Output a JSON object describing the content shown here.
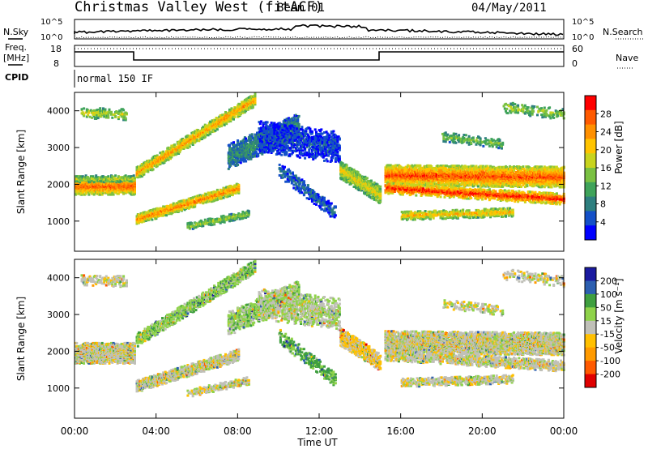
{
  "header": {
    "station": "Christmas Valley West (fitACF)",
    "beam": "Beam 01",
    "date": "04/May/2011"
  },
  "top_panels": {
    "nsky_label": "N.Sky",
    "nsearch_label": "N.Search",
    "freq_label_line1": "Freq.",
    "freq_label_line2": "[MHz]",
    "nave_label": "Nave",
    "cpid_label": "CPID",
    "noise_left_ticks": [
      "10^5",
      "10^0"
    ],
    "noise_right_ticks": [
      "10^5",
      "10^0"
    ],
    "freq_left_ticks": [
      "18",
      "8"
    ],
    "nave_right_ticks": [
      "60",
      "0"
    ],
    "cpid_text": "normal 150 IF"
  },
  "chart_data": [
    {
      "type": "heatmap",
      "title": "",
      "ylabel": "Slant Range [km]",
      "xlabel": "",
      "x_ticks": [
        "00:00",
        "04:00",
        "08:00",
        "12:00",
        "16:00",
        "20:00",
        "00:00"
      ],
      "y_ticks": [
        "1000",
        "2000",
        "3000",
        "4000"
      ],
      "xlim_hours": [
        0,
        24
      ],
      "ylim_km": [
        180,
        4500
      ],
      "colorbar": {
        "label": "Power [dB]",
        "ticks": [
          "4",
          "8",
          "12",
          "16",
          "20",
          "24",
          "28"
        ],
        "colors": [
          "#0000ff",
          "#1450c8",
          "#2e7f7f",
          "#3fa35a",
          "#7ac142",
          "#c8d41e",
          "#ffc400",
          "#ff9000",
          "#ff5a00",
          "#ff0000"
        ]
      },
      "bands": [
        {
          "t": [
            0.0,
            2.9
          ],
          "r": [
            1950,
            1950
          ],
          "w": 230,
          "level": 0.85,
          "d": 0.9
        },
        {
          "t": [
            0.0,
            2.9
          ],
          "r": [
            2150,
            2150
          ],
          "w": 90,
          "level": 0.55,
          "d": 0.6
        },
        {
          "t": [
            3.0,
            8.0
          ],
          "r": [
            1050,
            1900
          ],
          "w": 140,
          "level": 0.8,
          "d": 0.8
        },
        {
          "t": [
            3.0,
            8.8
          ],
          "r": [
            2300,
            4300
          ],
          "w": 170,
          "level": 0.75,
          "d": 0.75
        },
        {
          "t": [
            5.5,
            8.5
          ],
          "r": [
            850,
            1200
          ],
          "w": 90,
          "level": 0.5,
          "d": 0.55
        },
        {
          "t": [
            7.5,
            11.0
          ],
          "r": [
            2750,
            3600
          ],
          "w": 330,
          "level": 0.3,
          "d": 0.6
        },
        {
          "t": [
            9.0,
            13.0
          ],
          "r": [
            3300,
            3000
          ],
          "w": 420,
          "level": 0.15,
          "d": 0.45
        },
        {
          "t": [
            10.0,
            12.8
          ],
          "r": [
            2400,
            1200
          ],
          "w": 200,
          "level": 0.2,
          "d": 0.4
        },
        {
          "t": [
            13.0,
            15.0
          ],
          "r": [
            2400,
            1700
          ],
          "w": 240,
          "level": 0.62,
          "d": 0.85
        },
        {
          "t": [
            15.2,
            24.0
          ],
          "r": [
            2250,
            2200
          ],
          "w": 280,
          "level": 0.88,
          "d": 0.92
        },
        {
          "t": [
            15.2,
            24.0
          ],
          "r": [
            1900,
            1600
          ],
          "w": 150,
          "level": 0.95,
          "d": 0.6
        },
        {
          "t": [
            16.0,
            21.5
          ],
          "r": [
            1150,
            1250
          ],
          "w": 120,
          "level": 0.7,
          "d": 0.55
        },
        {
          "t": [
            0.3,
            2.5
          ],
          "r": [
            3950,
            3900
          ],
          "w": 150,
          "level": 0.55,
          "d": 0.3
        },
        {
          "t": [
            18.0,
            21.0
          ],
          "r": [
            3300,
            3100
          ],
          "w": 130,
          "level": 0.45,
          "d": 0.3
        },
        {
          "t": [
            21.0,
            24.0
          ],
          "r": [
            4100,
            3900
          ],
          "w": 150,
          "level": 0.5,
          "d": 0.25
        }
      ]
    },
    {
      "type": "heatmap",
      "title": "",
      "ylabel": "Slant Range [km]",
      "xlabel": "Time UT",
      "x_ticks": [
        "00:00",
        "04:00",
        "08:00",
        "12:00",
        "16:00",
        "20:00",
        "00:00"
      ],
      "y_ticks": [
        "1000",
        "2000",
        "3000",
        "4000"
      ],
      "xlim_hours": [
        0,
        24
      ],
      "ylim_km": [
        180,
        4500
      ],
      "colorbar": {
        "label": "Velocity [m s⁻¹]",
        "ticks": [
          "200",
          "100",
          "50",
          "15",
          "-15",
          "-50",
          "-100",
          "-200"
        ],
        "colors": [
          "#1a1aa0",
          "#2c5fb0",
          "#3f9f3f",
          "#8fd34a",
          "#c0c0b8",
          "#ffc000",
          "#ff9a00",
          "#ff5a00",
          "#e00000"
        ]
      },
      "bands": [
        {
          "t": [
            0.0,
            2.9
          ],
          "r": [
            1950,
            1950
          ],
          "w": 280,
          "level": 0.5,
          "d": 0.92
        },
        {
          "t": [
            3.0,
            8.0
          ],
          "r": [
            1050,
            1900
          ],
          "w": 160,
          "level": 0.5,
          "d": 0.85
        },
        {
          "t": [
            3.0,
            8.8
          ],
          "r": [
            2300,
            4300
          ],
          "w": 180,
          "level": 0.62,
          "d": 0.7
        },
        {
          "t": [
            5.5,
            8.5
          ],
          "r": [
            850,
            1200
          ],
          "w": 100,
          "level": 0.5,
          "d": 0.55
        },
        {
          "t": [
            7.5,
            11.0
          ],
          "r": [
            2750,
            3600
          ],
          "w": 320,
          "level": 0.6,
          "d": 0.5
        },
        {
          "t": [
            9.0,
            13.0
          ],
          "r": [
            3300,
            3000
          ],
          "w": 420,
          "level": 0.55,
          "d": 0.45
        },
        {
          "t": [
            10.0,
            12.8
          ],
          "r": [
            2400,
            1200
          ],
          "w": 200,
          "level": 0.7,
          "d": 0.35
        },
        {
          "t": [
            13.0,
            15.0
          ],
          "r": [
            2400,
            1700
          ],
          "w": 240,
          "level": 0.42,
          "d": 0.8
        },
        {
          "t": [
            15.2,
            24.0
          ],
          "r": [
            2250,
            2200
          ],
          "w": 300,
          "level": 0.5,
          "d": 0.9
        },
        {
          "t": [
            15.2,
            24.0
          ],
          "r": [
            1900,
            1600
          ],
          "w": 150,
          "level": 0.5,
          "d": 0.6
        },
        {
          "t": [
            16.0,
            21.5
          ],
          "r": [
            1150,
            1250
          ],
          "w": 120,
          "level": 0.5,
          "d": 0.5
        },
        {
          "t": [
            0.3,
            2.5
          ],
          "r": [
            3950,
            3900
          ],
          "w": 150,
          "level": 0.5,
          "d": 0.3
        },
        {
          "t": [
            18.0,
            21.0
          ],
          "r": [
            3300,
            3100
          ],
          "w": 130,
          "level": 0.5,
          "d": 0.3
        },
        {
          "t": [
            21.0,
            24.0
          ],
          "r": [
            4100,
            3900
          ],
          "w": 150,
          "level": 0.5,
          "d": 0.25
        }
      ]
    }
  ]
}
